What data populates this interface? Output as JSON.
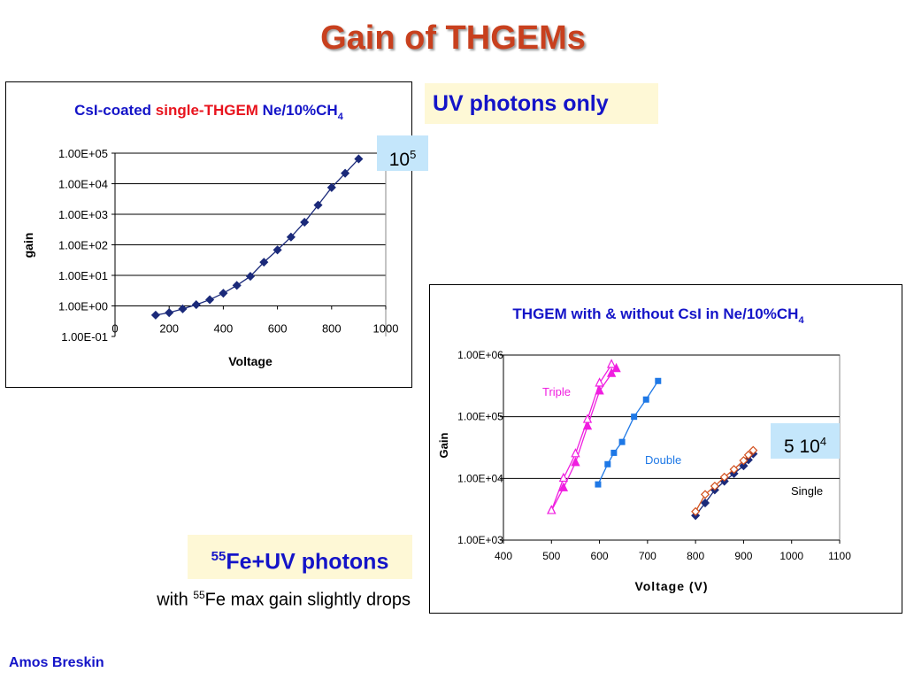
{
  "slide": {
    "title": "Gain of THGEMs",
    "uv_only_label": "UV photons only",
    "fe_uv_sup": "55",
    "fe_uv_text": "Fe+UV photons",
    "note_prefix": "with ",
    "note_sup": "55",
    "note_suffix": "Fe max gain slightly drops",
    "box1_base": "10",
    "box1_sup": "5",
    "box2_base": "5 10",
    "box2_sup": "4",
    "author": "Amos Breskin"
  },
  "chart_data": [
    {
      "type": "line",
      "title_parts": [
        {
          "text": "CsI-coated ",
          "color": "#1414c8"
        },
        {
          "text": "single-THGEM",
          "color": "#e8141e"
        },
        {
          "text": " Ne/10%CH",
          "color": "#1414c8"
        }
      ],
      "title_sub": "4",
      "xlabel": "Voltage",
      "ylabel": "gain",
      "xlim": [
        0,
        1000
      ],
      "ylim_log10": [
        -1,
        5
      ],
      "x_ticks": [
        "0",
        "200",
        "400",
        "600",
        "800",
        "1000"
      ],
      "y_ticks": [
        "1.00E-01",
        "1.00E+00",
        "1.00E+01",
        "1.00E+02",
        "1.00E+03",
        "1.00E+04",
        "1.00E+05"
      ],
      "log_y": true,
      "grid": "horizontal",
      "color": "#1b2a7a",
      "series": [
        {
          "x": [
            150,
            200,
            250,
            300,
            350,
            400,
            450,
            500,
            550,
            600,
            650,
            700,
            750,
            800,
            850,
            900
          ],
          "y": [
            0.5,
            0.6,
            0.8,
            1.1,
            1.6,
            2.6,
            4.7,
            9.3,
            27,
            68,
            180,
            550,
            2000,
            7500,
            22000,
            65000
          ]
        }
      ]
    },
    {
      "type": "line",
      "title_main": "THGEM  with & without CsI in Ne/10%CH",
      "title_sub": "4",
      "xlabel": "Voltage (V)",
      "ylabel": "Gain",
      "xlim": [
        400,
        1100
      ],
      "ylim_log10": [
        3,
        6
      ],
      "x_ticks": [
        "400",
        "500",
        "600",
        "700",
        "800",
        "900",
        "1000",
        "1100"
      ],
      "y_ticks": [
        "1.00E+03",
        "1.00E+04",
        "1.00E+05",
        "1.00E+06"
      ],
      "log_y": true,
      "grid": "horizontal",
      "series": [
        {
          "name": "Triple",
          "color": "#f01ee0",
          "marker": "triangle-filled",
          "x": [
            500,
            525,
            550,
            575,
            600,
            625,
            635
          ],
          "y": [
            3000,
            7000,
            18000,
            70000,
            260000,
            500000,
            600000
          ]
        },
        {
          "name": "Triple",
          "color": "#f01ee0",
          "marker": "triangle-open",
          "x": [
            500,
            525,
            550,
            575,
            600,
            625
          ],
          "y": [
            3000,
            10000,
            25000,
            90000,
            350000,
            700000
          ]
        },
        {
          "name": "Double",
          "color": "#1e78e6",
          "marker": "square",
          "x": [
            597,
            617,
            630,
            647,
            672,
            697,
            722
          ],
          "y": [
            8000,
            17000,
            26000,
            39000,
            100000,
            190000,
            380000
          ]
        },
        {
          "name": "Single",
          "color": "#1b2a7a",
          "marker": "diamond-filled",
          "x": [
            800,
            820,
            840,
            860,
            880,
            900,
            910,
            920
          ],
          "y": [
            2500,
            4000,
            6500,
            9000,
            12000,
            16000,
            20000,
            25000
          ]
        },
        {
          "name": "Single",
          "color": "#d2501e",
          "marker": "diamond-open",
          "x": [
            800,
            820,
            840,
            860,
            880,
            900,
            910,
            920
          ],
          "y": [
            2900,
            5500,
            7500,
            10500,
            14000,
            19500,
            24000,
            28500
          ]
        }
      ]
    }
  ]
}
